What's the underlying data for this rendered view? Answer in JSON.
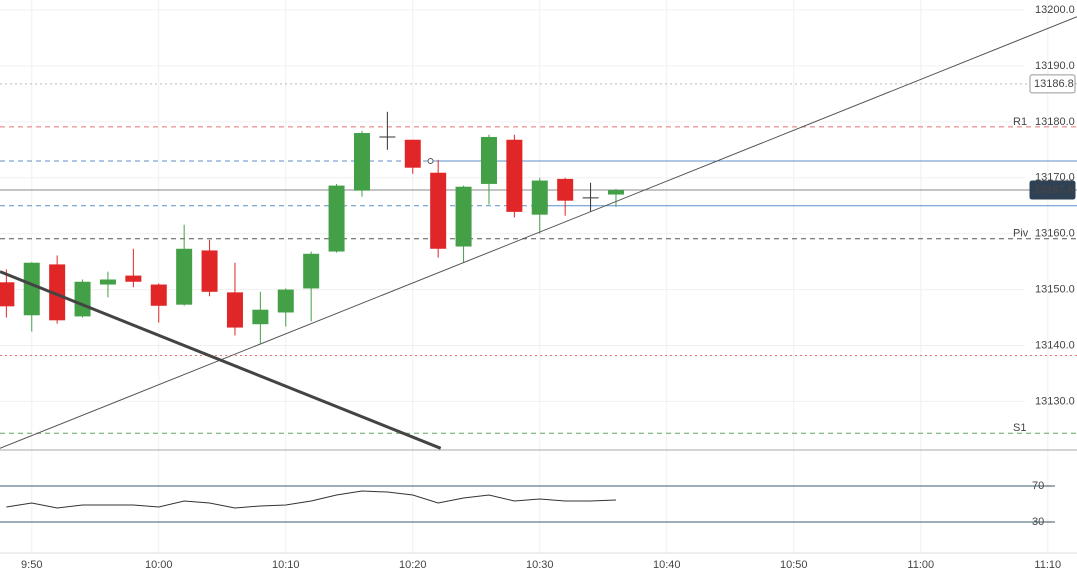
{
  "chart_data": [
    {
      "type": "candlestick",
      "x": [
        588,
        590,
        592,
        594,
        596,
        598,
        600,
        602,
        604,
        606,
        608,
        610,
        612,
        614,
        616,
        618,
        620,
        622,
        624,
        626,
        628,
        630,
        632,
        634,
        636
      ],
      "open": [
        13151.3,
        13145.4,
        13154.5,
        13145.2,
        13150.9,
        13152.5,
        13150.9,
        13147.3,
        13157.0,
        13149.5,
        13143.8,
        13145.9,
        13150.2,
        13156.8,
        13167.7,
        13177.3,
        13176.8,
        13170.9,
        13157.7,
        13168.9,
        13176.8,
        13163.4,
        13169.8,
        13166.4,
        13167.0
      ],
      "high": [
        13153.6,
        13154.9,
        13156.1,
        13151.8,
        13153.2,
        13157.3,
        13151.1,
        13161.6,
        13158.9,
        13154.8,
        13149.6,
        13150.2,
        13156.8,
        13168.9,
        13178.4,
        13181.8,
        13176.8,
        13173.2,
        13168.6,
        13177.7,
        13177.7,
        13170.0,
        13170.0,
        13169.1,
        13168.0
      ],
      "low": [
        13145.0,
        13142.5,
        13143.9,
        13145.0,
        13148.6,
        13150.4,
        13144.1,
        13147.1,
        13148.8,
        13141.8,
        13140.4,
        13143.4,
        13144.3,
        13156.6,
        13166.6,
        13175.0,
        13170.7,
        13155.7,
        13154.8,
        13165.2,
        13162.9,
        13160.0,
        13163.2,
        13163.9,
        13164.8
      ],
      "close": [
        13147.0,
        13154.8,
        13144.5,
        13151.4,
        13151.8,
        13151.4,
        13147.1,
        13157.3,
        13149.6,
        13143.2,
        13146.4,
        13150.0,
        13156.4,
        13168.6,
        13178.0,
        13177.3,
        13171.8,
        13157.3,
        13168.4,
        13177.3,
        13163.9,
        13169.5,
        13165.9,
        13166.4,
        13167.8
      ],
      "up_color": "#43a047",
      "down_color": "#e02626",
      "xlim": [
        587.5,
        672.3
      ],
      "xticks": [
        {
          "value": 590,
          "label": "9:50"
        },
        {
          "value": 600,
          "label": "10:00"
        },
        {
          "value": 610,
          "label": "10:10"
        },
        {
          "value": 620,
          "label": "10:20"
        },
        {
          "value": 630,
          "label": "10:30"
        },
        {
          "value": 640,
          "label": "10:40"
        },
        {
          "value": 650,
          "label": "10:50"
        },
        {
          "value": 660,
          "label": "11:00"
        },
        {
          "value": 670,
          "label": "11:10"
        }
      ],
      "ylim": [
        13121.3,
        13201.8
      ],
      "yticks": [
        {
          "value": 13130,
          "label": "13130.0"
        },
        {
          "value": 13140,
          "label": "13140.0"
        },
        {
          "value": 13150,
          "label": "13150.0"
        },
        {
          "value": 13160,
          "label": "13160.0"
        },
        {
          "value": 13170,
          "label": "13170.0"
        },
        {
          "value": 13180,
          "label": "13180.0"
        },
        {
          "value": 13190,
          "label": "13190.0"
        },
        {
          "value": 13200,
          "label": "13200.0"
        }
      ],
      "grid": true,
      "levels": [
        {
          "value": 13179.1,
          "label": "R1",
          "color": "#e57373",
          "style": "dashed"
        },
        {
          "value": 13159.1,
          "label": "Piv",
          "color": "#555555",
          "style": "dashed"
        },
        {
          "value": 13124.3,
          "label": "S1",
          "color": "#5fa35f",
          "style": "dashed"
        },
        {
          "value": 13138.2,
          "color": "#e57373",
          "style": "dotted"
        },
        {
          "value": 13186.8,
          "color": "#bbbbbb",
          "style": "dotted"
        },
        {
          "value": 13173.0,
          "color": "#5b8fc9",
          "style": "dashed",
          "solid_from": 621.4
        },
        {
          "value": 13165.0,
          "color": "#5b8fc9",
          "style": "dashed",
          "solid_from": 630.4
        },
        {
          "value": 13167.8,
          "color": "#888888",
          "style": "solid"
        }
      ],
      "price_markers": [
        {
          "value": 13186.8,
          "style": "light"
        },
        {
          "value": 13167.8,
          "style": "dark"
        }
      ],
      "trendlines": [
        {
          "x": [
            587.5,
            672.3
          ],
          "y": [
            13121.6,
            13198.8
          ],
          "width": 1,
          "color": "#555555"
        },
        {
          "x": [
            587.5,
            622.2
          ],
          "y": [
            13153.2,
            13121.6
          ],
          "width": 3,
          "color": "#444444"
        }
      ]
    },
    {
      "type": "line",
      "x": [
        588,
        590,
        592,
        594,
        596,
        598,
        600,
        602,
        604,
        606,
        608,
        610,
        612,
        614,
        616,
        618,
        620,
        622,
        624,
        626,
        628,
        630,
        632,
        634,
        636
      ],
      "values": [
        46.7,
        51.1,
        45.6,
        48.9,
        48.9,
        48.9,
        46.7,
        53.3,
        51.1,
        45.6,
        47.8,
        48.9,
        53.3,
        60.0,
        64.4,
        63.3,
        60.0,
        51.1,
        56.7,
        60.0,
        53.3,
        55.6,
        53.3,
        53.3,
        54.4
      ],
      "color": "#333333",
      "ylim": [
        1.1,
        107.8
      ],
      "yticks": [
        30,
        70
      ]
    }
  ]
}
